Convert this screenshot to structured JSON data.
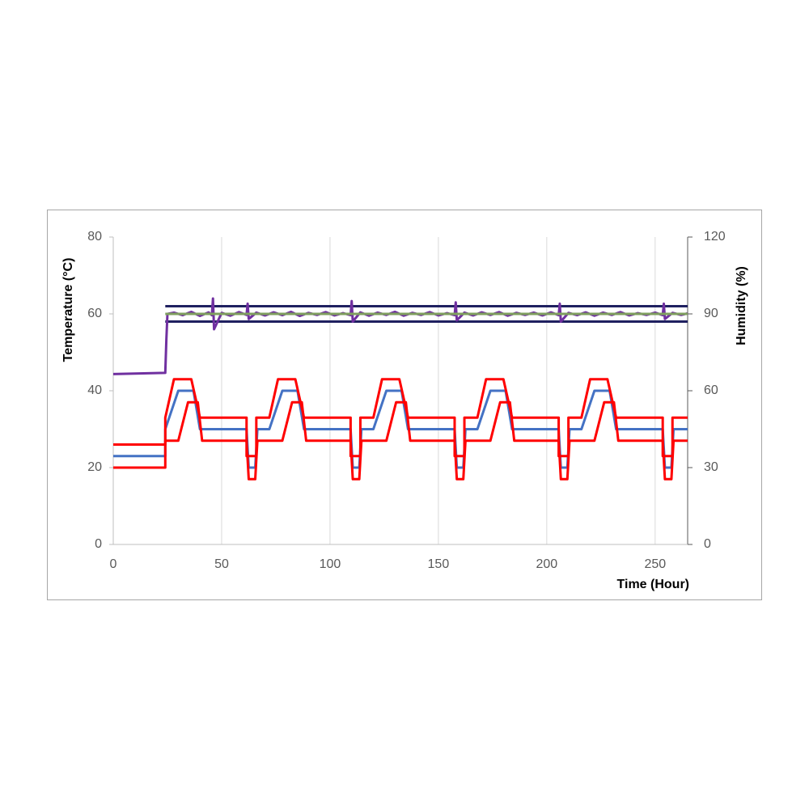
{
  "chart_data": {
    "type": "line",
    "xlabel": "Time (Hour)",
    "ylabel": "Temperature (°C)",
    "y2label": "Humidity (%)",
    "xlim": [
      0,
      265
    ],
    "xticks": [
      0,
      50,
      100,
      150,
      200,
      250
    ],
    "ylim": [
      0,
      80
    ],
    "yticks": [
      0,
      20,
      40,
      60,
      80
    ],
    "y2lim": [
      0,
      120
    ],
    "y2ticks": [
      0,
      30,
      60,
      90,
      120
    ],
    "grid": "x",
    "series": [
      {
        "color": "#1f2060",
        "axis": "y2",
        "x": [
          24,
          265
        ],
        "values": [
          93,
          93
        ]
      },
      {
        "color": "#1f2060",
        "axis": "y2",
        "x": [
          24,
          265
        ],
        "values": [
          87,
          87
        ]
      },
      {
        "color": "#7030a0",
        "axis": "y2",
        "x": [
          0,
          24,
          24.5,
          25,
          28,
          32,
          36,
          40,
          44,
          45.5,
          46,
          46.5,
          50,
          54,
          58,
          61.5,
          62,
          62.5,
          66,
          70,
          74,
          78,
          82,
          86,
          90,
          94,
          98,
          102,
          106,
          109.5,
          110,
          110.5,
          114,
          118,
          122,
          126,
          130,
          134,
          138,
          142,
          146,
          150,
          154,
          157.5,
          158,
          158.5,
          162,
          166,
          170,
          174,
          178,
          182,
          186,
          190,
          194,
          198,
          202,
          205.5,
          206,
          206.5,
          210,
          214,
          218,
          222,
          226,
          230,
          234,
          238,
          242,
          246,
          250,
          253.5,
          254,
          254.5,
          258,
          262,
          265
        ],
        "values": [
          66.5,
          67,
          80,
          90,
          90.5,
          89.5,
          90.8,
          89.2,
          90.6,
          89.5,
          96,
          84,
          90.4,
          89.3,
          90.7,
          89.6,
          94,
          88,
          90.5,
          89.4,
          90.6,
          89.5,
          90.8,
          89.2,
          90.4,
          89.6,
          90.7,
          89.4,
          90.3,
          89.5,
          95,
          87,
          90.6,
          89.3,
          90.5,
          89.6,
          90.8,
          89.3,
          90.4,
          89.6,
          90.7,
          89.4,
          90.3,
          89.5,
          94.5,
          87.5,
          90.5,
          89.4,
          90.6,
          89.6,
          90.7,
          89.3,
          90.4,
          89.6,
          90.5,
          89.4,
          90.6,
          89.5,
          94,
          87,
          90.4,
          89.5,
          90.6,
          89.3,
          90.5,
          89.6,
          90.7,
          89.4,
          90.3,
          89.6,
          90.5,
          89.5,
          94,
          88,
          90.4,
          89.6,
          90.2
        ]
      },
      {
        "color": "#7f9f5f",
        "axis": "y2",
        "x": [
          24,
          265
        ],
        "values": [
          90,
          90
        ]
      },
      {
        "color": "#4472c4",
        "axis": "y",
        "x": [
          0,
          24,
          24,
          30,
          37,
          40,
          61.5,
          62.5,
          65.5,
          66.5,
          72,
          78,
          85,
          88,
          109.5,
          110.5,
          113.5,
          114.5,
          120,
          126,
          133,
          136,
          157.5,
          158.5,
          161.5,
          162.5,
          168,
          174,
          181,
          184,
          205.5,
          206.5,
          209.5,
          210.5,
          216,
          222,
          229,
          232,
          253.5,
          254.5,
          257.5,
          258.5,
          265
        ],
        "values": [
          23,
          23,
          30,
          40,
          40,
          30,
          30,
          20,
          20,
          30,
          30,
          40,
          40,
          30,
          30,
          20,
          20,
          30,
          30,
          40,
          40,
          30,
          30,
          20,
          20,
          30,
          30,
          40,
          40,
          30,
          30,
          20,
          20,
          30,
          30,
          40,
          40,
          30,
          30,
          20,
          20,
          30,
          30
        ]
      },
      {
        "color": "#ff0000",
        "axis": "y",
        "x": [
          0,
          24,
          24,
          28,
          36,
          40,
          61.5,
          61.5,
          66,
          66,
          72,
          76,
          84,
          88,
          109.5,
          109.5,
          114,
          114,
          120,
          124,
          132,
          136,
          157.5,
          157.5,
          162,
          162,
          168,
          172,
          180,
          184,
          205.5,
          205.5,
          210,
          210,
          216,
          220,
          228,
          232,
          253.5,
          253.5,
          258,
          258,
          265
        ],
        "values": [
          26,
          26,
          33,
          43,
          43,
          33,
          33,
          23,
          23,
          33,
          33,
          43,
          43,
          33,
          33,
          23,
          23,
          33,
          33,
          43,
          43,
          33,
          33,
          23,
          23,
          33,
          33,
          43,
          43,
          33,
          33,
          23,
          23,
          33,
          33,
          43,
          43,
          33,
          33,
          23,
          23,
          33,
          33
        ]
      },
      {
        "color": "#ff0000",
        "axis": "y",
        "x": [
          0,
          24,
          24,
          30,
          34.5,
          39,
          41,
          61.5,
          62.5,
          65.5,
          66.5,
          72,
          78,
          82.5,
          87,
          89,
          109.5,
          110.5,
          113.5,
          114.5,
          120,
          126,
          130.5,
          135,
          137,
          157.5,
          158.5,
          161.5,
          162.5,
          168,
          174,
          178.5,
          183,
          185,
          205.5,
          206.5,
          209.5,
          210.5,
          216,
          222,
          226.5,
          231,
          233,
          253.5,
          254.5,
          257.5,
          258.5,
          265
        ],
        "values": [
          20,
          20,
          27,
          27,
          37,
          37,
          27,
          27,
          17,
          17,
          27,
          27,
          27,
          37,
          37,
          27,
          27,
          17,
          17,
          27,
          27,
          27,
          37,
          37,
          27,
          27,
          17,
          17,
          27,
          27,
          27,
          37,
          37,
          27,
          27,
          17,
          17,
          27,
          27,
          27,
          37,
          37,
          27,
          27,
          17,
          17,
          27,
          27
        ]
      }
    ]
  }
}
